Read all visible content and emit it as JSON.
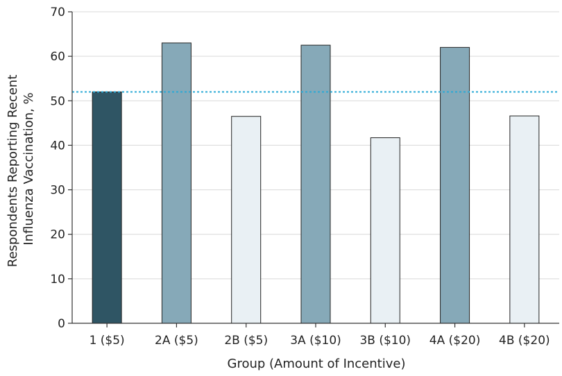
{
  "chart_data": {
    "type": "bar",
    "xlabel": "Group (Amount of Incentive)",
    "ylabel_lines": [
      "Respondents Reporting Recent",
      "Influenza Vaccination, %"
    ],
    "ylim": [
      0,
      70
    ],
    "yticks": [
      0,
      10,
      20,
      30,
      40,
      50,
      60,
      70
    ],
    "grid": true,
    "reference_line": 52,
    "categories": [
      "1 ($5)",
      "2A ($5)",
      "2B ($5)",
      "3A ($10)",
      "3B ($10)",
      "4A ($20)",
      "4B ($20)"
    ],
    "values": [
      52,
      63,
      46.5,
      62.5,
      41.7,
      62,
      46.6
    ],
    "colors": [
      "#2f5564",
      "#86a9b8",
      "#e9f0f4",
      "#86a9b8",
      "#e9f0f4",
      "#86a9b8",
      "#e9f0f4"
    ],
    "reference_color": "#29a9d6"
  }
}
